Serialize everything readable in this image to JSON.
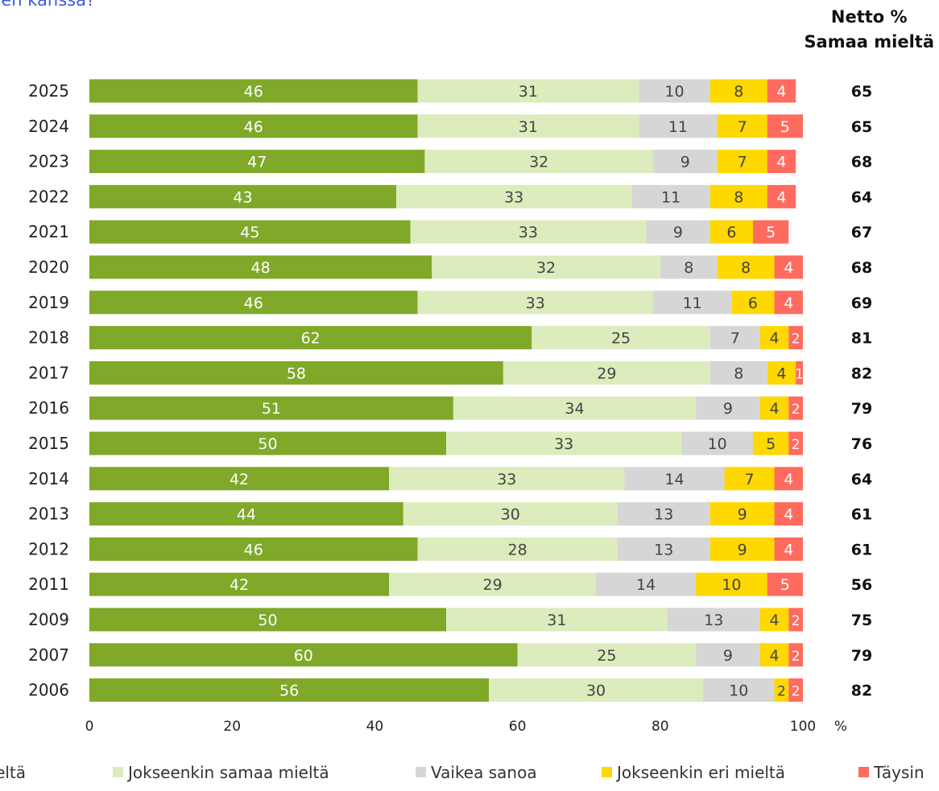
{
  "question_text": "den kanssa?",
  "netto_header": [
    "Netto %",
    "Samaa mieltä"
  ],
  "chart_data": {
    "type": "bar",
    "orientation": "horizontal",
    "stacked": true,
    "categories": [
      "2025",
      "2024",
      "2023",
      "2022",
      "2021",
      "2020",
      "2019",
      "2018",
      "2017",
      "2016",
      "2015",
      "2014",
      "2013",
      "2012",
      "2011",
      "2009",
      "2007",
      "2006"
    ],
    "series": [
      {
        "name": "Täysin samaa mieltä",
        "color": "#80a829",
        "values": [
          46,
          46,
          47,
          43,
          45,
          48,
          46,
          62,
          58,
          51,
          50,
          42,
          44,
          46,
          42,
          50,
          60,
          56
        ]
      },
      {
        "name": "Jokseenkin samaa mieltä",
        "color": "#dcecbd",
        "values": [
          31,
          31,
          32,
          33,
          33,
          32,
          33,
          25,
          29,
          34,
          33,
          33,
          30,
          28,
          29,
          31,
          25,
          30
        ]
      },
      {
        "name": "Vaikea sanoa",
        "color": "#d6d6d6",
        "values": [
          10,
          11,
          9,
          11,
          9,
          8,
          11,
          7,
          8,
          9,
          10,
          14,
          13,
          13,
          14,
          13,
          9,
          10
        ]
      },
      {
        "name": "Jokseenkin eri mieltä",
        "color": "#ffd800",
        "values": [
          8,
          7,
          7,
          8,
          6,
          8,
          6,
          4,
          4,
          4,
          5,
          7,
          9,
          9,
          10,
          4,
          4,
          2
        ]
      },
      {
        "name": "Täysin eri mieltä",
        "color": "#ff6b5e",
        "values": [
          4,
          5,
          4,
          4,
          5,
          4,
          4,
          2,
          1,
          2,
          2,
          4,
          4,
          4,
          5,
          2,
          2,
          2
        ]
      }
    ],
    "netto": [
      65,
      65,
      68,
      64,
      67,
      68,
      69,
      81,
      82,
      79,
      76,
      64,
      61,
      61,
      56,
      75,
      79,
      82
    ],
    "xticks": [
      "0",
      "20",
      "40",
      "60",
      "80",
      "100"
    ],
    "xunit": "%",
    "xlim": [
      0,
      100
    ],
    "legend_position": "bottom",
    "legend_labels": [
      "n mieltä",
      "Jokseenkin samaa mieltä",
      "Vaikea sanoa",
      "Jokseenkin eri mieltä",
      "Täysin"
    ],
    "label_colors": [
      "#ffffff",
      "#444444",
      "#444444",
      "#444444",
      "#ffffff"
    ]
  }
}
